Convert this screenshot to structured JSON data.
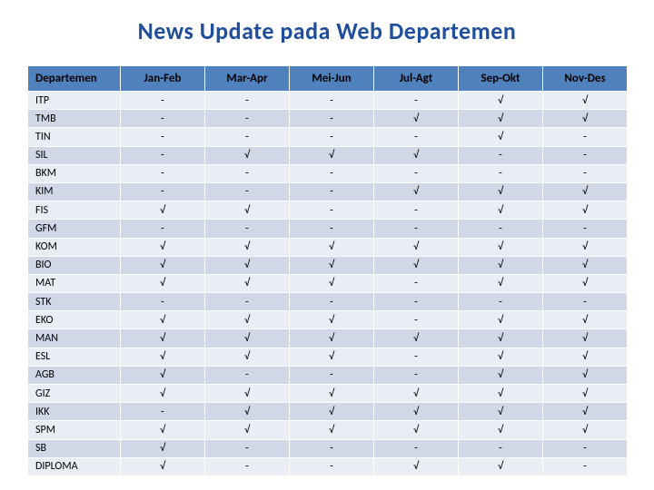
{
  "title": "News Update pada Web Departemen",
  "columns": [
    "Departemen",
    "Jan-Feb",
    "Mar-Apr",
    "Mei-Jun",
    "Jul-Agt",
    "Sep-Okt",
    "Nov-Des"
  ],
  "col_widths": [
    "102px",
    "93px",
    "93px",
    "93px",
    "93px",
    "93px",
    "93px"
  ],
  "header_bg": "#4f81bd",
  "row_bg_even": "#e9edf4",
  "row_bg_odd": "#d0d8e8",
  "title_color": "#1f4e9c",
  "tick": "√",
  "dash": "-",
  "rows": [
    {
      "dept": "ITP",
      "v": [
        "-",
        "-",
        "-",
        "-",
        "√",
        "√"
      ]
    },
    {
      "dept": "TMB",
      "v": [
        "-",
        "-",
        "-",
        "√",
        "√",
        "√"
      ]
    },
    {
      "dept": "TIN",
      "v": [
        "-",
        "-",
        "-",
        "-",
        "√",
        "-"
      ]
    },
    {
      "dept": "SIL",
      "v": [
        "-",
        "√",
        "√",
        "√",
        "-",
        "-"
      ]
    },
    {
      "dept": "BKM",
      "v": [
        "-",
        "-",
        "-",
        "-",
        "-",
        "-"
      ]
    },
    {
      "dept": "KIM",
      "v": [
        "-",
        "-",
        "-",
        "√",
        "√",
        "√"
      ]
    },
    {
      "dept": "FIS",
      "v": [
        "√",
        "√",
        "-",
        "-",
        "√",
        "√"
      ]
    },
    {
      "dept": "GFM",
      "v": [
        "-",
        "-",
        "-",
        "-",
        "-",
        "-"
      ]
    },
    {
      "dept": "KOM",
      "v": [
        "√",
        "√",
        "√",
        "√",
        "√",
        "√"
      ]
    },
    {
      "dept": "BIO",
      "v": [
        "√",
        "√",
        "√",
        "√",
        "√",
        "√"
      ]
    },
    {
      "dept": "MAT",
      "v": [
        "√",
        "√",
        "√",
        "-",
        "√",
        "√"
      ]
    },
    {
      "dept": "STK",
      "v": [
        "-",
        "-",
        "-",
        "-",
        "-",
        "-"
      ]
    },
    {
      "dept": "EKO",
      "v": [
        "√",
        "√",
        "√",
        "-",
        "√",
        "√"
      ]
    },
    {
      "dept": "MAN",
      "v": [
        "√",
        "√",
        "√",
        "√",
        "√",
        "√"
      ]
    },
    {
      "dept": "ESL",
      "v": [
        "√",
        "√",
        "√",
        "-",
        "√",
        "√"
      ]
    },
    {
      "dept": "AGB",
      "v": [
        "√",
        "-",
        "-",
        "-",
        "√",
        "√"
      ]
    },
    {
      "dept": "GIZ",
      "v": [
        "√",
        "√",
        "√",
        "√",
        "√",
        "√"
      ]
    },
    {
      "dept": "IKK",
      "v": [
        "-",
        "√",
        "√",
        "√",
        "√",
        "√"
      ]
    },
    {
      "dept": "SPM",
      "v": [
        "√",
        "√",
        "√",
        "√",
        "√",
        "√"
      ]
    },
    {
      "dept": "SB",
      "v": [
        "√",
        "-",
        "-",
        "-",
        "-",
        "-"
      ]
    },
    {
      "dept": "DIPLOMA",
      "v": [
        "√",
        "-",
        "-",
        "√",
        "√",
        "-"
      ]
    }
  ]
}
